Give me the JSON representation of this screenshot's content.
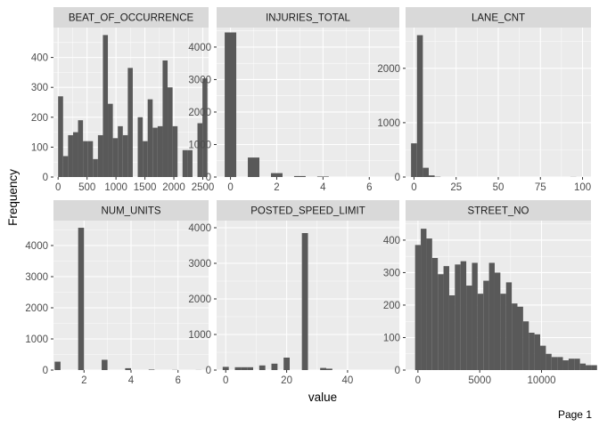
{
  "page_label": "Page 1",
  "chart_data": {
    "type": "histogram-facets",
    "xlabel": "value",
    "ylabel": "Frequency",
    "panels": [
      {
        "title": "BEAT_OF_OCCURRENCE",
        "bins_start": 0,
        "bin_width": 86,
        "values": [
          270,
          70,
          140,
          150,
          190,
          120,
          120,
          60,
          140,
          475,
          245,
          130,
          170,
          140,
          365,
          0,
          200,
          120,
          260,
          165,
          170,
          390,
          300,
          170,
          0,
          90,
          90,
          0,
          180,
          330
        ],
        "xlim": [
          -80,
          2600
        ],
        "ylim": [
          0,
          500
        ],
        "xticks": [
          0,
          500,
          1000,
          1500,
          2000,
          2500
        ],
        "xtick_labels": [
          "0",
          "500",
          "1000",
          "1500",
          "2000",
          "2500"
        ],
        "yticks": [
          0,
          100,
          200,
          300,
          400
        ],
        "ytick_labels": [
          "0",
          "100",
          "200",
          "300",
          "400"
        ]
      },
      {
        "title": "INJURIES_TOTAL",
        "bins_start": -0.25,
        "bin_width": 0.5,
        "values": [
          4450,
          0,
          600,
          0,
          120,
          0,
          30,
          0,
          15,
          0,
          0,
          0,
          0,
          0
        ],
        "xlim": [
          -0.6,
          7.3
        ],
        "ylim": [
          0,
          4600
        ],
        "xticks": [
          0,
          2,
          4,
          6
        ],
        "xtick_labels": [
          "0",
          "2",
          "4",
          "6"
        ],
        "yticks": [
          0,
          1000,
          2000,
          3000,
          4000
        ],
        "ytick_labels": [
          "0",
          "1000",
          "2000",
          "3000",
          "4000"
        ]
      },
      {
        "title": "LANE_CNT",
        "bins_start": -1.75,
        "bin_width": 3.5,
        "values": [
          620,
          2610,
          170,
          30,
          5,
          0,
          0,
          0,
          0,
          0,
          0,
          0,
          0,
          0,
          0,
          0,
          0,
          0,
          0,
          0,
          0,
          0,
          0,
          0,
          0,
          0,
          0,
          2,
          0
        ],
        "xlim": [
          -5,
          105
        ],
        "ylim": [
          0,
          2750
        ],
        "xticks": [
          0,
          25,
          50,
          75,
          100
        ],
        "xtick_labels": [
          "0",
          "25",
          "50",
          "75",
          "100"
        ],
        "yticks": [
          0,
          1000,
          2000
        ],
        "ytick_labels": [
          "0",
          "1000",
          "2000"
        ]
      },
      {
        "title": "NUM_UNITS",
        "bins_start": 0.75,
        "bin_width": 0.25,
        "values": [
          270,
          0,
          0,
          0,
          4570,
          0,
          0,
          0,
          330,
          0,
          0,
          0,
          60,
          0,
          0,
          0,
          15,
          0,
          0,
          0,
          5,
          0,
          0,
          0,
          3
        ],
        "xlim": [
          0.7,
          7.3
        ],
        "ylim": [
          0,
          4800
        ],
        "xticks": [
          2,
          4,
          6
        ],
        "xtick_labels": [
          "2",
          "4",
          "6"
        ],
        "yticks": [
          0,
          1000,
          2000,
          3000,
          4000
        ],
        "ytick_labels": [
          "0",
          "1000",
          "2000",
          "3000",
          "4000"
        ]
      },
      {
        "title": "POSTED_SPEED_LIMIT",
        "bins_start": -1,
        "bin_width": 2,
        "values": [
          90,
          0,
          80,
          80,
          80,
          0,
          130,
          0,
          180,
          0,
          350,
          0,
          0,
          3850,
          0,
          0,
          60,
          40,
          0
        ],
        "xlim": [
          -3,
          57
        ],
        "ylim": [
          0,
          4200
        ],
        "xticks": [
          0,
          20,
          40
        ],
        "xtick_labels": [
          "0",
          "20",
          "40"
        ],
        "yticks": [
          0,
          1000,
          2000,
          3000,
          4000
        ],
        "ytick_labels": [
          "0",
          "1000",
          "2000",
          "3000",
          "4000"
        ]
      },
      {
        "title": "STREET_NO",
        "bins_start": -230,
        "bin_width": 460,
        "values": [
          385,
          435,
          405,
          345,
          295,
          320,
          230,
          325,
          335,
          260,
          330,
          235,
          275,
          330,
          300,
          235,
          270,
          205,
          195,
          150,
          115,
          110,
          75,
          50,
          40,
          40,
          30,
          35,
          35,
          20,
          15,
          15
        ],
        "xlim": [
          -1000,
          14000
        ],
        "ylim": [
          0,
          460
        ],
        "xticks": [
          0,
          5000,
          10000
        ],
        "xtick_labels": [
          "0",
          "5000",
          "10000"
        ],
        "yticks": [
          0,
          100,
          200,
          300,
          400
        ],
        "ytick_labels": [
          "0",
          "100",
          "200",
          "300",
          "400"
        ]
      }
    ]
  }
}
